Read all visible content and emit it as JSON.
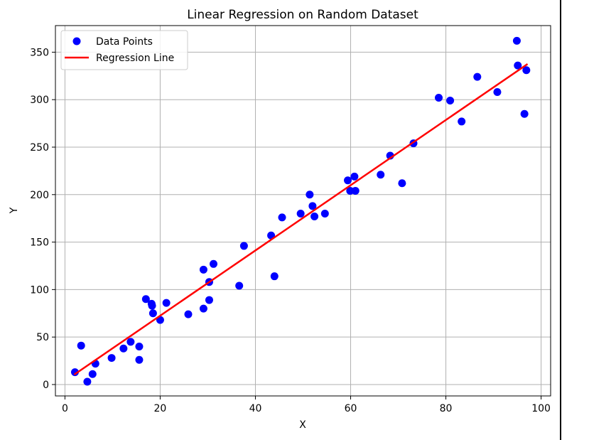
{
  "chart_data": {
    "type": "scatter",
    "title": "Linear Regression on Random Dataset",
    "xlabel": "X",
    "ylabel": "Y",
    "xlim": [
      -2,
      102
    ],
    "ylim": [
      -12,
      378
    ],
    "xticks": [
      "0",
      "20",
      "40",
      "60",
      "80",
      "100"
    ],
    "yticks": [
      "0",
      "50",
      "100",
      "150",
      "200",
      "250",
      "300",
      "350"
    ],
    "grid": true,
    "legend_position": "top-left",
    "series": [
      {
        "name": "Data Points",
        "kind": "scatter",
        "color": "#0000ff",
        "points": [
          [
            2.1,
            13
          ],
          [
            3.4,
            41
          ],
          [
            4.7,
            3
          ],
          [
            5.8,
            11
          ],
          [
            6.4,
            22
          ],
          [
            9.8,
            28
          ],
          [
            12.3,
            38
          ],
          [
            13.8,
            45
          ],
          [
            15.6,
            40
          ],
          [
            15.6,
            26
          ],
          [
            17.0,
            90
          ],
          [
            18.2,
            85
          ],
          [
            18.3,
            83
          ],
          [
            18.5,
            75
          ],
          [
            20.0,
            68
          ],
          [
            21.3,
            86
          ],
          [
            25.9,
            74
          ],
          [
            29.1,
            121
          ],
          [
            29.1,
            80
          ],
          [
            30.3,
            108
          ],
          [
            30.3,
            89
          ],
          [
            31.2,
            127
          ],
          [
            36.6,
            104
          ],
          [
            37.6,
            146
          ],
          [
            43.3,
            157
          ],
          [
            44.0,
            114
          ],
          [
            45.6,
            176
          ],
          [
            49.5,
            180
          ],
          [
            51.4,
            200
          ],
          [
            52.0,
            188
          ],
          [
            52.4,
            177
          ],
          [
            54.6,
            180
          ],
          [
            59.4,
            215
          ],
          [
            59.9,
            204
          ],
          [
            60.8,
            219
          ],
          [
            61.0,
            204
          ],
          [
            66.3,
            221
          ],
          [
            68.3,
            241
          ],
          [
            70.8,
            212
          ],
          [
            73.2,
            254
          ],
          [
            78.5,
            302
          ],
          [
            80.9,
            299
          ],
          [
            83.3,
            277
          ],
          [
            86.6,
            324
          ],
          [
            90.8,
            308
          ],
          [
            94.9,
            362
          ],
          [
            95.1,
            336
          ],
          [
            96.5,
            285
          ],
          [
            96.9,
            331
          ]
        ]
      },
      {
        "name": "Regression Line",
        "kind": "line",
        "color": "#ff0000",
        "points": [
          [
            2.1,
            11
          ],
          [
            97.0,
            337
          ]
        ]
      }
    ]
  }
}
